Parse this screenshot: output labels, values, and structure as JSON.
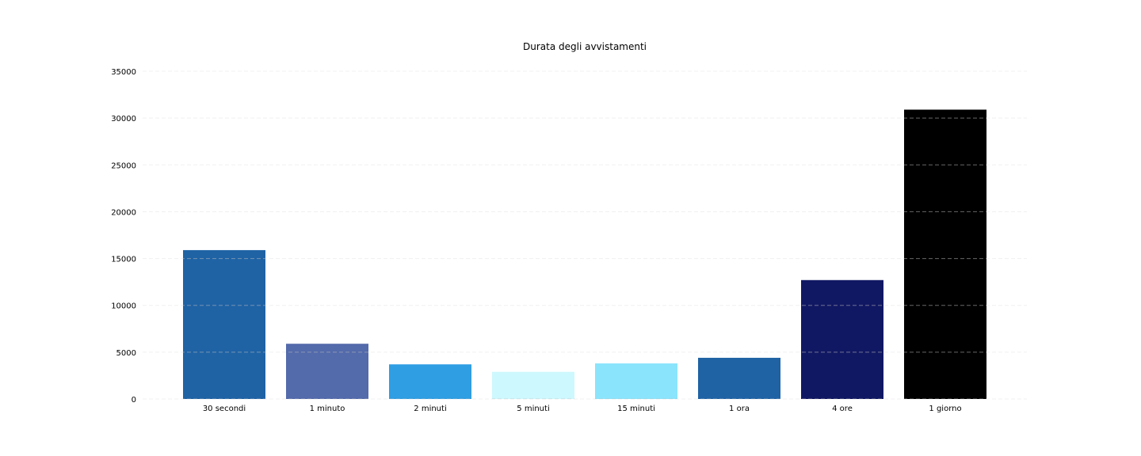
{
  "chart_data": {
    "type": "bar",
    "title": "Durata degli avvistamenti",
    "xlabel": "",
    "ylabel": "",
    "categories": [
      "30 secondi",
      "1 minuto",
      "2 minuti",
      "5 minuti",
      "15 minuti",
      "1 ora",
      "4 ore",
      "1 giorno"
    ],
    "values": [
      15900,
      5900,
      3700,
      2900,
      3800,
      4400,
      12700,
      30900
    ],
    "colors": [
      "#1f63a5",
      "#536aab",
      "#2f9ee3",
      "#cdf8fd",
      "#8ae4fc",
      "#1f63a5",
      "#111863",
      "#000000"
    ],
    "ylim": [
      0,
      35000
    ],
    "yticks": [
      0,
      5000,
      10000,
      15000,
      20000,
      25000,
      30000,
      35000
    ],
    "grid": true,
    "grid_style": "dashed",
    "legend": "none"
  }
}
